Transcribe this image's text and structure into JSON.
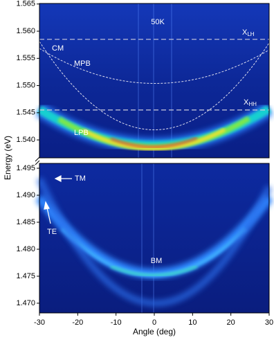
{
  "chart_data": {
    "type": "heatmap",
    "x_label": "Angle (deg)",
    "y_label": "Energy (eV)",
    "xlim": [
      -30,
      30
    ],
    "xticks": [
      -30,
      -20,
      -10,
      0,
      10,
      20,
      30
    ],
    "panels": [
      {
        "ylim": [
          1.5367,
          1.5651
        ],
        "yticks": [
          {
            "value": 1.54,
            "label": "1.540"
          },
          1.545,
          {
            "value": 1.55,
            "label": "1.550"
          },
          1.555,
          {
            "value": 1.56,
            "label": "1.560"
          },
          1.565
        ],
        "hlines": [
          1.5585,
          1.5455
        ],
        "temperature": "50K",
        "labels": {
          "x_lh": "X",
          "x_lh_sub": "LH",
          "x_hh": "X",
          "x_hh_sub": "HH",
          "cm": "CM",
          "mpb": "MPB",
          "lpb": "LPB"
        }
      },
      {
        "ylim": [
          1.4682,
          1.4959
        ],
        "yticks": [
          {
            "value": 1.47,
            "label": "1.470"
          },
          1.475,
          {
            "value": 1.48,
            "label": "1.480"
          },
          1.485,
          {
            "value": 1.49,
            "label": "1.490"
          },
          1.495
        ],
        "labels": {
          "tm": "TM",
          "te": "TE",
          "bm": "BM"
        }
      }
    ]
  }
}
